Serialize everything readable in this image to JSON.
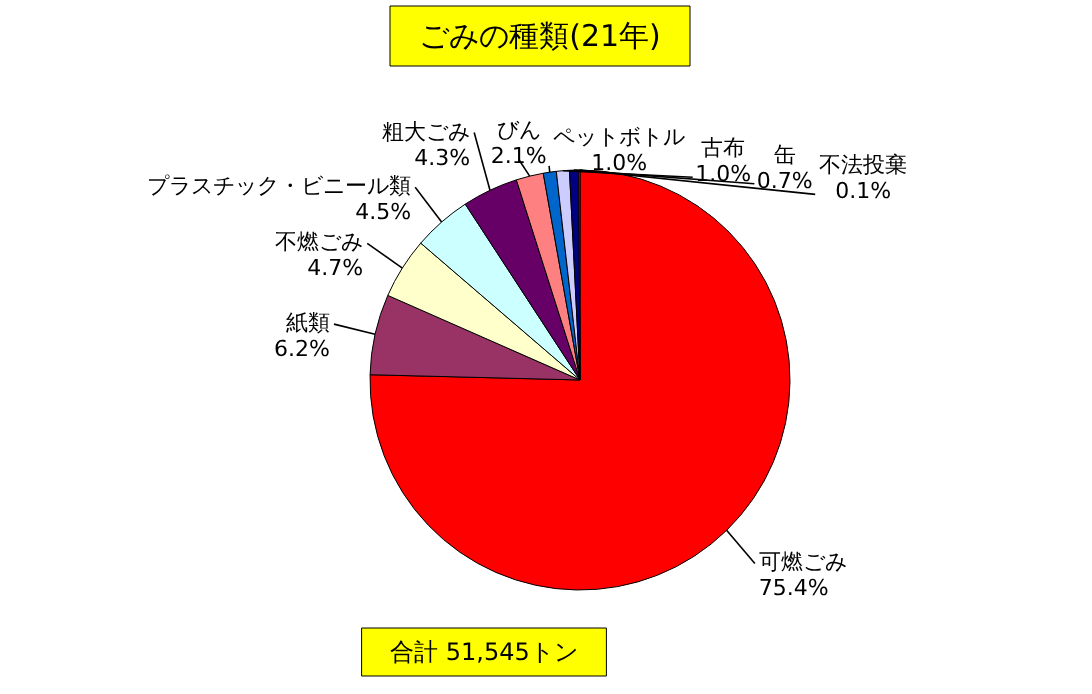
{
  "chart_data": {
    "type": "pie",
    "title": "ごみの種類(21年)",
    "categories": [
      "可燃ごみ",
      "紙類",
      "不燃ごみ",
      "プラスチック・ビニール類",
      "粗大ごみ",
      "びん",
      "ペットボトル",
      "古布",
      "缶",
      "不法投棄"
    ],
    "values": [
      75.4,
      6.2,
      4.7,
      4.5,
      4.3,
      2.1,
      1.0,
      1.0,
      0.7,
      0.1
    ],
    "value_labels": [
      "75.4%",
      "6.2%",
      "4.7%",
      "4.5%",
      "4.3%",
      "2.1%",
      "1.0%",
      "1.0%",
      "0.7%",
      "0.1%"
    ],
    "colors": [
      "#ff0000",
      "#993366",
      "#ffffcc",
      "#ccffff",
      "#660066",
      "#ff8080",
      "#0066cc",
      "#ccccff",
      "#000080",
      "#ff00ff"
    ],
    "annotations": [
      "合計 51,545トン"
    ]
  }
}
